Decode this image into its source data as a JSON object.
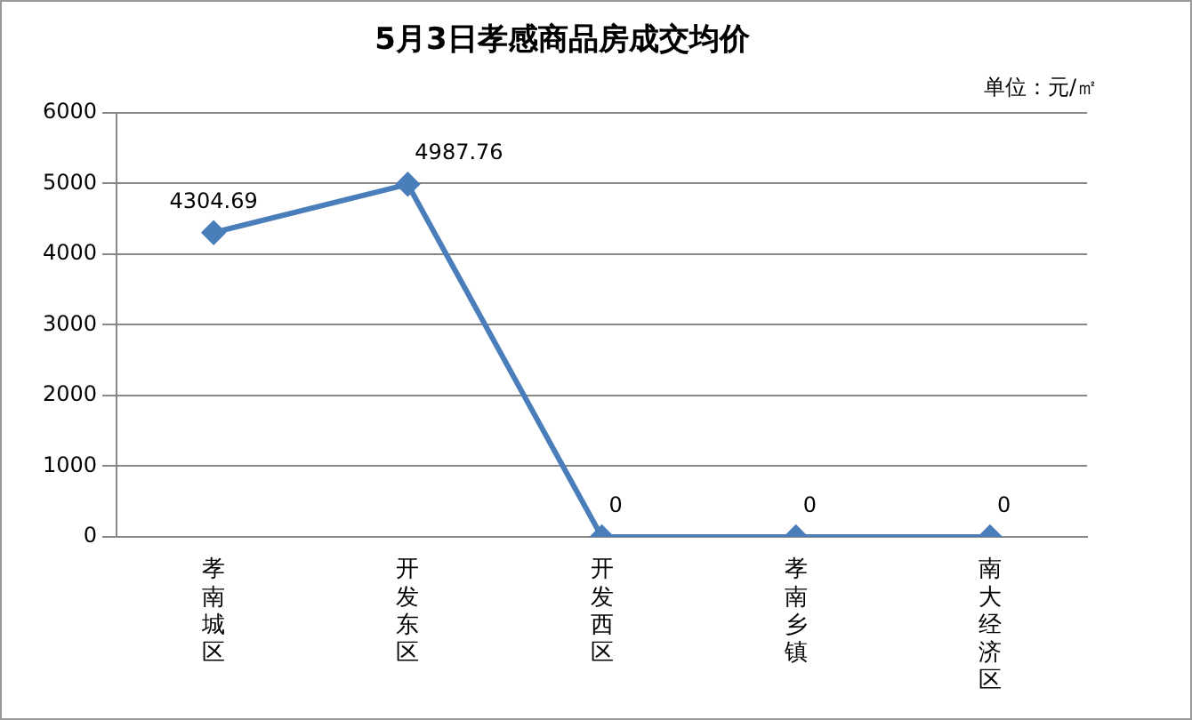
{
  "chart_data": {
    "type": "line",
    "title": "5月3日孝感商品房成交均价",
    "annotations": [
      "单位：元/㎡"
    ],
    "categories": [
      "孝南城区",
      "开发东区",
      "开发西区",
      "孝南乡镇",
      "南大经济区"
    ],
    "series": [
      {
        "color": "#4a7ebb",
        "values": [
          4304.69,
          4987.76,
          0,
          0,
          0
        ]
      }
    ],
    "ylim": [
      0,
      6000
    ],
    "yticks": [
      0,
      1000,
      2000,
      3000,
      4000,
      5000,
      6000
    ],
    "grid": "y",
    "legend": false,
    "marker": "diamond",
    "line_style": "solid",
    "data_labels": true
  }
}
